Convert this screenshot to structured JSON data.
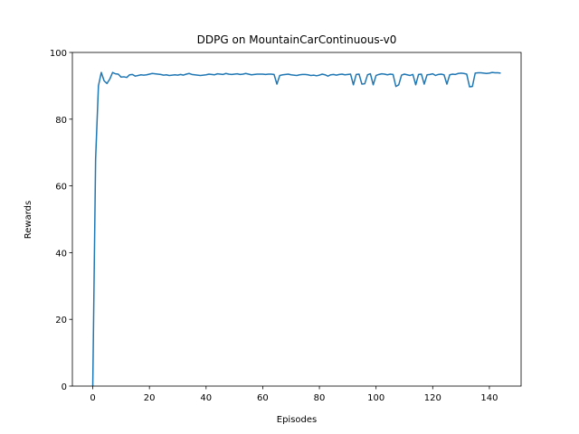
{
  "chart_data": {
    "type": "line",
    "title": "DDPG on MountainCarContinuous-v0",
    "x_label": "Episodes",
    "y_label": "Rewards",
    "x": [
      0,
      1,
      2,
      3,
      4,
      5,
      6,
      7,
      8,
      9,
      10,
      11,
      12,
      13,
      14,
      15,
      16,
      17,
      18,
      19,
      20,
      21,
      22,
      23,
      24,
      25,
      26,
      27,
      28,
      29,
      30,
      31,
      32,
      33,
      34,
      35,
      36,
      37,
      38,
      39,
      40,
      41,
      42,
      43,
      44,
      45,
      46,
      47,
      48,
      49,
      50,
      51,
      52,
      53,
      54,
      55,
      56,
      57,
      58,
      59,
      60,
      61,
      62,
      63,
      64,
      65,
      66,
      67,
      68,
      69,
      70,
      71,
      72,
      73,
      74,
      75,
      76,
      77,
      78,
      79,
      80,
      81,
      82,
      83,
      84,
      85,
      86,
      87,
      88,
      89,
      90,
      91,
      92,
      93,
      94,
      95,
      96,
      97,
      98,
      99,
      100,
      101,
      102,
      103,
      104,
      105,
      106,
      107,
      108,
      109,
      110,
      111,
      112,
      113,
      114,
      115,
      116,
      117,
      118,
      119,
      120,
      121,
      122,
      123,
      124,
      125,
      126,
      127,
      128,
      129,
      130,
      131,
      132,
      133,
      134,
      135,
      136,
      137,
      138,
      139,
      140,
      141,
      142,
      143,
      144
    ],
    "series": [
      {
        "name": "Rewards",
        "color": "#1f77b4",
        "values": [
          0,
          68,
          90,
          94,
          91.5,
          90.7,
          92,
          94,
          93.6,
          93.5,
          92.6,
          92.7,
          92.5,
          93.3,
          93.4,
          92.9,
          93.1,
          93.3,
          93.2,
          93.3,
          93.5,
          93.7,
          93.6,
          93.5,
          93.4,
          93.2,
          93.3,
          93.1,
          93.2,
          93.3,
          93.2,
          93.4,
          93.2,
          93.5,
          93.7,
          93.4,
          93.3,
          93.2,
          93.1,
          93.2,
          93.3,
          93.5,
          93.4,
          93.3,
          93.6,
          93.5,
          93.4,
          93.7,
          93.5,
          93.4,
          93.5,
          93.6,
          93.4,
          93.5,
          93.7,
          93.5,
          93.3,
          93.4,
          93.5,
          93.5,
          93.5,
          93.4,
          93.5,
          93.5,
          93.4,
          90.5,
          93.1,
          93.3,
          93.4,
          93.5,
          93.3,
          93.2,
          93.1,
          93.3,
          93.4,
          93.4,
          93.3,
          93.1,
          93.2,
          93.0,
          93.2,
          93.5,
          93.3,
          92.9,
          93.3,
          93.4,
          93.2,
          93.4,
          93.5,
          93.3,
          93.4,
          93.5,
          90.3,
          93.4,
          93.5,
          90.5,
          90.6,
          93.3,
          93.6,
          90.3,
          93.1,
          93.4,
          93.6,
          93.5,
          93.3,
          93.5,
          93.4,
          89.8,
          90.3,
          93.2,
          93.5,
          93.3,
          93.1,
          93.4,
          90.3,
          93.4,
          93.5,
          90.5,
          93.3,
          93.4,
          93.6,
          93.1,
          93.4,
          93.5,
          93.3,
          90.5,
          93.3,
          93.5,
          93.4,
          93.7,
          93.8,
          93.7,
          93.5,
          89.7,
          89.8,
          93.8,
          93.9,
          93.9,
          93.8,
          93.7,
          93.8,
          94.0,
          93.9,
          93.9,
          93.8
        ]
      }
    ],
    "xlim": [
      -7.2,
      151.2
    ],
    "ylim": [
      0,
      100
    ],
    "xticks": [
      0,
      20,
      40,
      60,
      80,
      100,
      120,
      140
    ],
    "yticks": [
      0,
      20,
      40,
      60,
      80,
      100
    ]
  }
}
